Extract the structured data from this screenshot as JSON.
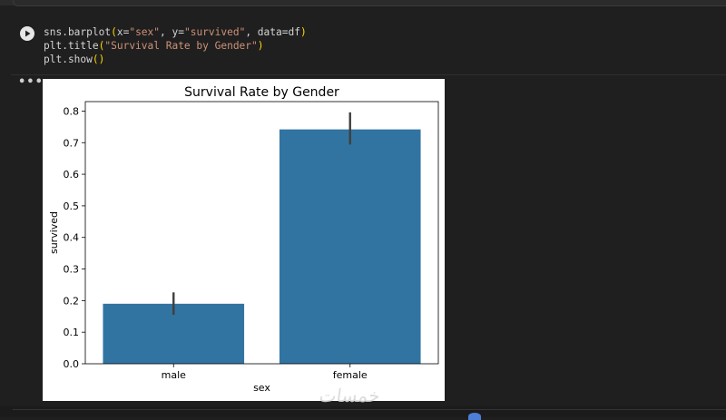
{
  "notebook": {
    "code_lines": [
      "sns.barplot(x=\"sex\", y=\"survived\", data=df)",
      "plt.title(\"Survival Rate by Gender\")",
      "plt.show()"
    ],
    "output_menu_label": "•••",
    "watermark_text": "خمسات"
  },
  "chart_data": {
    "type": "bar",
    "title": "Survival Rate by Gender",
    "xlabel": "sex",
    "ylabel": "survived",
    "categories": [
      "male",
      "female"
    ],
    "values": [
      0.19,
      0.742
    ],
    "error_bars": [
      [
        0.155,
        0.226
      ],
      [
        0.694,
        0.796
      ]
    ],
    "ylim": [
      0,
      0.83
    ],
    "yticks": [
      0.0,
      0.1,
      0.2,
      0.3,
      0.4,
      0.5,
      0.6,
      0.7,
      0.8
    ],
    "ytick_labels": [
      "0.0",
      "0.1",
      "0.2",
      "0.3",
      "0.4",
      "0.5",
      "0.6",
      "0.7",
      "0.8"
    ],
    "bar_color": "#3274a1",
    "error_color": "#3f3f3f",
    "grid": false
  }
}
